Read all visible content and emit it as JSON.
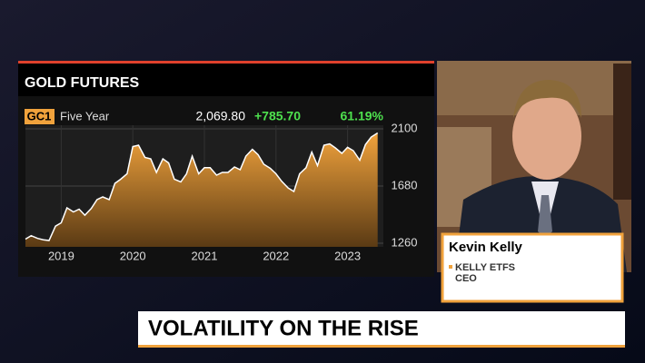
{
  "chart_data": {
    "type": "area",
    "title": "GOLD FUTURES",
    "ticker": "GC1",
    "period": "Five Year",
    "last": "2,069.80",
    "change": "+785.70",
    "change_pct": "61.19%",
    "color": "#f0a23c",
    "line_color": "#ffffff",
    "x": [
      2019.0,
      2019.08,
      2019.17,
      2019.25,
      2019.33,
      2019.42,
      2019.5,
      2019.58,
      2019.67,
      2019.75,
      2019.83,
      2019.92,
      2020.0,
      2020.08,
      2020.17,
      2020.25,
      2020.33,
      2020.42,
      2020.5,
      2020.58,
      2020.67,
      2020.75,
      2020.83,
      2020.92,
      2021.0,
      2021.08,
      2021.17,
      2021.25,
      2021.33,
      2021.42,
      2021.5,
      2021.58,
      2021.67,
      2021.75,
      2021.83,
      2021.92,
      2022.0,
      2022.08,
      2022.17,
      2022.25,
      2022.33,
      2022.42,
      2022.5,
      2022.58,
      2022.67,
      2022.75,
      2022.83,
      2022.92,
      2023.0,
      2023.08,
      2023.17,
      2023.25,
      2023.33,
      2023.42,
      2023.5,
      2023.58,
      2023.67,
      2023.75,
      2023.83,
      2023.92
    ],
    "values": [
      1290,
      1315,
      1295,
      1285,
      1280,
      1385,
      1410,
      1520,
      1490,
      1510,
      1465,
      1515,
      1580,
      1600,
      1580,
      1700,
      1730,
      1770,
      1970,
      1980,
      1890,
      1880,
      1780,
      1880,
      1850,
      1730,
      1710,
      1770,
      1900,
      1770,
      1815,
      1815,
      1760,
      1780,
      1780,
      1820,
      1800,
      1900,
      1950,
      1910,
      1840,
      1810,
      1770,
      1715,
      1665,
      1640,
      1770,
      1815,
      1930,
      1830,
      1980,
      1990,
      1960,
      1920,
      1965,
      1940,
      1870,
      1985,
      2040,
      2070
    ],
    "xlim": [
      2019,
      2024
    ],
    "xticks": [
      {
        "value": 2019.5,
        "label": "2019"
      },
      {
        "value": 2020.5,
        "label": "2020"
      },
      {
        "value": 2021.5,
        "label": "2021"
      },
      {
        "value": 2022.5,
        "label": "2022"
      },
      {
        "value": 2023.5,
        "label": "2023"
      }
    ],
    "ylim": [
      1233,
      2127
    ],
    "yticks": [
      1260,
      1680,
      2100
    ],
    "grid": true
  },
  "guest": {
    "name": "Kevin Kelly",
    "company": "KELLY ETFS",
    "role": "CEO"
  },
  "headline": "VOLATILITY ON THE RISE"
}
